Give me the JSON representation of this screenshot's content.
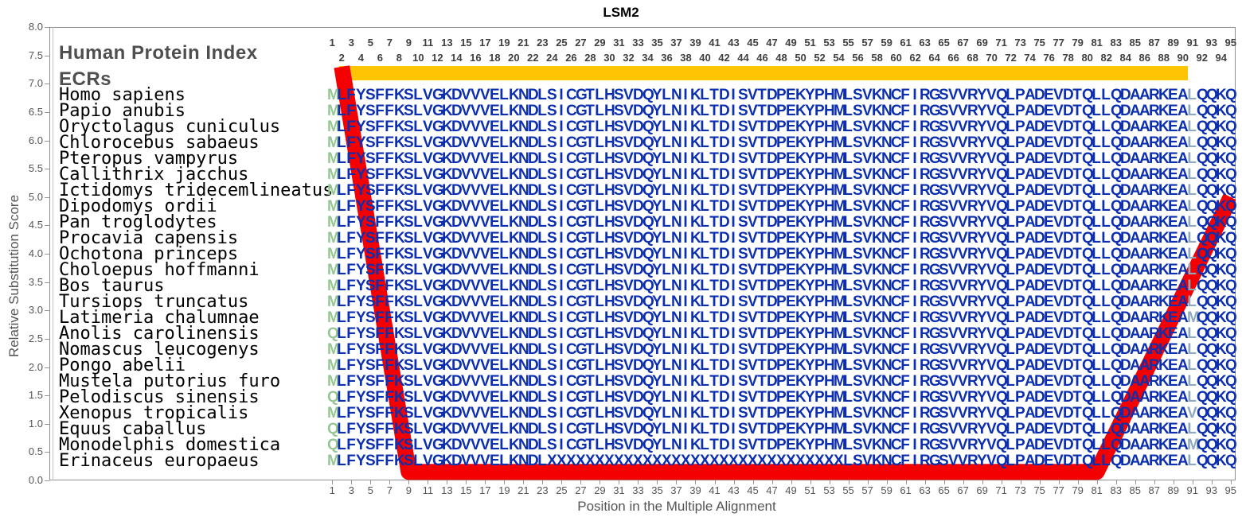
{
  "title": "LSM2",
  "header": {
    "protein_index_label": "Human Protein Index",
    "ecrs_label": "ECRs"
  },
  "axes": {
    "y_label": "Relative Substitution Score",
    "x_label": "Position in the Multiple Alignment",
    "y_ticks": [
      "8.0",
      "7.5",
      "7.0",
      "6.5",
      "6.0",
      "5.5",
      "5.0",
      "4.5",
      "4.0",
      "3.5",
      "3.0",
      "2.5",
      "2.0",
      "1.5",
      "1.0",
      "0.5",
      "0.0"
    ],
    "x_ticks_odd": [
      1,
      3,
      5,
      7,
      9,
      11,
      13,
      15,
      17,
      19,
      21,
      23,
      25,
      27,
      29,
      31,
      33,
      35,
      37,
      39,
      41,
      43,
      45,
      47,
      49,
      51,
      53,
      55,
      57,
      59,
      61,
      63,
      65,
      67,
      69,
      71,
      73,
      75,
      77,
      79,
      81,
      83,
      85,
      87,
      89,
      91,
      93,
      95
    ],
    "x_ticks_even": [
      2,
      4,
      6,
      8,
      10,
      12,
      14,
      16,
      18,
      20,
      22,
      24,
      26,
      28,
      30,
      32,
      34,
      36,
      38,
      40,
      42,
      44,
      46,
      48,
      50,
      52,
      54,
      56,
      58,
      60,
      62,
      64,
      66,
      68,
      70,
      72,
      74,
      76,
      78,
      80,
      82,
      84,
      86,
      88,
      90,
      92,
      94
    ]
  },
  "colors": {
    "residue_default": "#0C2FB0",
    "residue_first": "#96C696",
    "residue_pos91": "#8FA9BD",
    "ecr_bar": "#FFC403",
    "score_line": "#F50000",
    "axis_text": "#555555"
  },
  "ecr_bar": {
    "start_position": 2,
    "end_position": 90
  },
  "alignment": {
    "consensus": "MLFYSFFKSLVGKDVVVELKNDLSICGTLHSVDQYLNIKLTDISVTDPEKYPHMLSVKNCFIRGSVVRYVQLPADEVDTQLLQDAARKEALQQKQ",
    "species": [
      {
        "name": "Homo sapiens",
        "seq": "MLFYSFFKSLVGKDVVVELKNDLSICGTLHSVDQYLNIKLTDISVTDPEKYPHMLSVKNCFIRGSVVRYVQLPADEVDTQLLQDAARKEALQQKQ"
      },
      {
        "name": "Papio anubis",
        "seq": "MLFYSFFKSLVGKDVVVELKNDLSICGTLHSVDQYLNIKLTDISVTDPEKYPHMLSVKNCFIRGSVVRYVQLPADEVDTQLLQDAARKEALQQKQ"
      },
      {
        "name": "Oryctolagus cuniculus",
        "seq": "MLFYSFFKSLVGKDVVVELKNDLSICGTLHSVDQYLNIKLTDISVTDPEKYPHMLSVKNCFIRGSVVRYVQLPADEVDTQLLQDAARKEALQQKQ"
      },
      {
        "name": "Chlorocebus sabaeus",
        "seq": "MLFYSFFKSLVGKDVVVELKNDLSICGTLHSVDQYLNIKLTDISVTDPEKYPHMLSVKNCFIRGSVVRYVQLPADEVDTQLLQDAARKEALQQKQ"
      },
      {
        "name": "Pteropus vampyrus",
        "seq": "MLFYSFFKSLVGKDVVVELKNDLSICGTLHSVDQYLNIKLTDISVTDPEKYPHMLSVKNCFIRGSVVRYVQLPADEVDTQLLQDAARKEALQQKQ"
      },
      {
        "name": "Callithrix jacchus",
        "seq": "MLFYSFFKSLVGKDVVVELKNDLSICGTLHSVDQYLNIKLTDISVTDPEKYPHMLSVKNCFIRGSVVRYVQLPADEVDTQLLQDAARKEALQQKQ"
      },
      {
        "name": "Ictidomys tridecemlineatus",
        "seq": "MLFYSFFKSLVGKDVVVELKNDLSICGTLHSVDQYLNIKLTDISVTDPEKYPHMLSVKNCFIRGSVVRYVQLPADEVDTQLLQDAARKEALQQKQ"
      },
      {
        "name": "Dipodomys ordii",
        "seq": "MLFYSFFKSLVGKDVVVELKNDLSICGTLHSVDQYLNIKLTDISVTDPEKYPHMLSVKNCFIRGSVVRYVQLPADEVDTQLLQDAARKEALQQKQ"
      },
      {
        "name": "Pan troglodytes",
        "seq": "MLFYSFFKSLVGKDVVVELKNDLSICGTLHSVDQYLNIKLTDISVTDPEKYPHMLSVKNCFIRGSVVRYVQLPADEVDTQLLQDAARKEALQQKQ"
      },
      {
        "name": "Procavia capensis",
        "seq": "MLFYSFFKSLVGKDVVVELKNDLSICGTLHSVDQYLNIKLTDISVTDPEKYPHMLSVKNCFIRGSVVRYVQLPADEVDTQLLQDAARKEALQQKQ"
      },
      {
        "name": "Ochotona princeps",
        "seq": "MLFYSFFKSLVGKDVVVELKNDLSICGTLHSVDQYLNIKLTDISVTDPEKYPHMLSVKNCFIRGSVVRYVQLPADEVDTQLLQDAARKEALQQKQ"
      },
      {
        "name": "Choloepus hoffmanni",
        "seq": "MLFYSFFKSLVGKDVVVELKNDLSICGTLHSVDQYLNIKLTDISVTDPEKYPHMLSVKNCFIRGSVVRYVQLPADEVDTQLLQDAARKEALQQKQ"
      },
      {
        "name": "Bos taurus",
        "seq": "MLFYSFFKSLVGKDVVVELKNDLSICGTLHSVDQYLNIKLTDISVTDPEKYPHMLSVKNCFIRGSVVRYVQLPADEVDTQLLQDAARKEALQQKQ"
      },
      {
        "name": "Tursiops truncatus",
        "seq": "MLFYSFFKSLVGKDVVVELKNDLSICGTLHSVDQYLNIKLTDISVTDPEKYPHMLSVKNCFIRGSVVRYVQLPADEVDTQLLQDAARKEALQQKQ"
      },
      {
        "name": "Latimeria chalumnae",
        "seq": "MLFYSFFKSLVGKDVVVELKNDLSICGTLHSVDQYLNIKLTDISVTDPEKYPHMLSVKNCFIRGSVVRYVQLPADEVDTQLLQDAARKEAMQQKQ"
      },
      {
        "name": "Anolis carolinensis",
        "seq": "QLFYSFFKSLVGKDVVVELKNDLSICGTLHSVDQYLNIKLTDISVTDPEKYPHMLSVKNCFIRGSVVRYVQLPADEVDTQLLQDAARKEALQQKQ"
      },
      {
        "name": "Nomascus leucogenys",
        "seq": "MLFYSFFKSLVGKDVVVELKNDLSICGTLHSVDQYLNIKLTDISVTDPEKYPHMLSVKNCFIRGSVVRYVQLPADEVDTQLLQDAARKEALQQKQ"
      },
      {
        "name": "Pongo abelii",
        "seq": "MLFYSFFKSLVGKDVVVELKNDLSICGTLHSVDQYLNIKLTDISVTDPEKYPHMLSVKNCFIRGSVVRYVQLPADEVDTQLLQDAARKEALQQKQ"
      },
      {
        "name": "Mustela putorius furo",
        "seq": "MLFYSFFKSLVGKDVVVELKNDLSICGTLHSVDQYLNIKLTDISVTDPEKYPHMLSVKNCFIRGSVVRYVQLPADEVDTQLLQDAARKEALQQKQ"
      },
      {
        "name": "Pelodiscus sinensis",
        "seq": "QLFYSFFKSLVGKDVVVELKNDLSICGTLHSVDQYLNIKLTDISVTDPEKYPHMLSVKNCFIRGSVVRYVQLPADEVDTQLLQDAARKEALQQKQ"
      },
      {
        "name": "Xenopus tropicalis",
        "seq": "MLFYSFFKSLVGKDVVVELKNDLSICGTLHSVDQYLNIKLTDISVTDPEKYPHMLSVKNCFIRGSVVRYVQLPADEVDTQLLQDAARKEAVQQKQ"
      },
      {
        "name": "Equus caballus",
        "seq": "QLFYSFFKSLVGKDVVVELKNDLSICGTLHSVDQYLNIKLTDISVTDPEKYPHMLSVKNCFIRGSVVRYVQLPADEVDTQLLQDAARKEALQQKQ"
      },
      {
        "name": "Monodelphis domestica",
        "seq": "QLFYSFFKSLVGKDVVVELKNDLSICGTLHSVDQYLNIKLTDISVTDPEKYPHMLSVKNCFIRGSVVRYVQLPADEVDTQLLQDAARKEAMQQKQ"
      },
      {
        "name": "Erinaceus europaeus",
        "seq": "MLFYSFFKSLVGKDVVVELKNDLXXXXXXXXXXXXXXXXXXXXXXXXXXXXXXXLSVKNCFIRGSVVRYVQLPADEVDTQLLQDAARKEALQQKQ"
      }
    ]
  },
  "chart_data": {
    "type": "line",
    "title": "LSM2",
    "xlabel": "Position in the Multiple Alignment",
    "ylabel": "Relative Substitution Score",
    "xlim": [
      1,
      95
    ],
    "ylim": [
      0.0,
      8.0
    ],
    "y_tick_step": 0.5,
    "grid": false,
    "legend": "none",
    "series": [
      {
        "name": "relative-substitution-score",
        "color": "#F50000",
        "points": [
          [
            2,
            7.3
          ],
          [
            9,
            0.15
          ],
          [
            81,
            0.15
          ],
          [
            95,
            5.0
          ]
        ]
      }
    ],
    "annotations": {
      "ecr_bar": {
        "from_position": 2,
        "to_position": 90,
        "color": "#FFC403",
        "label": "ECRs"
      }
    }
  }
}
